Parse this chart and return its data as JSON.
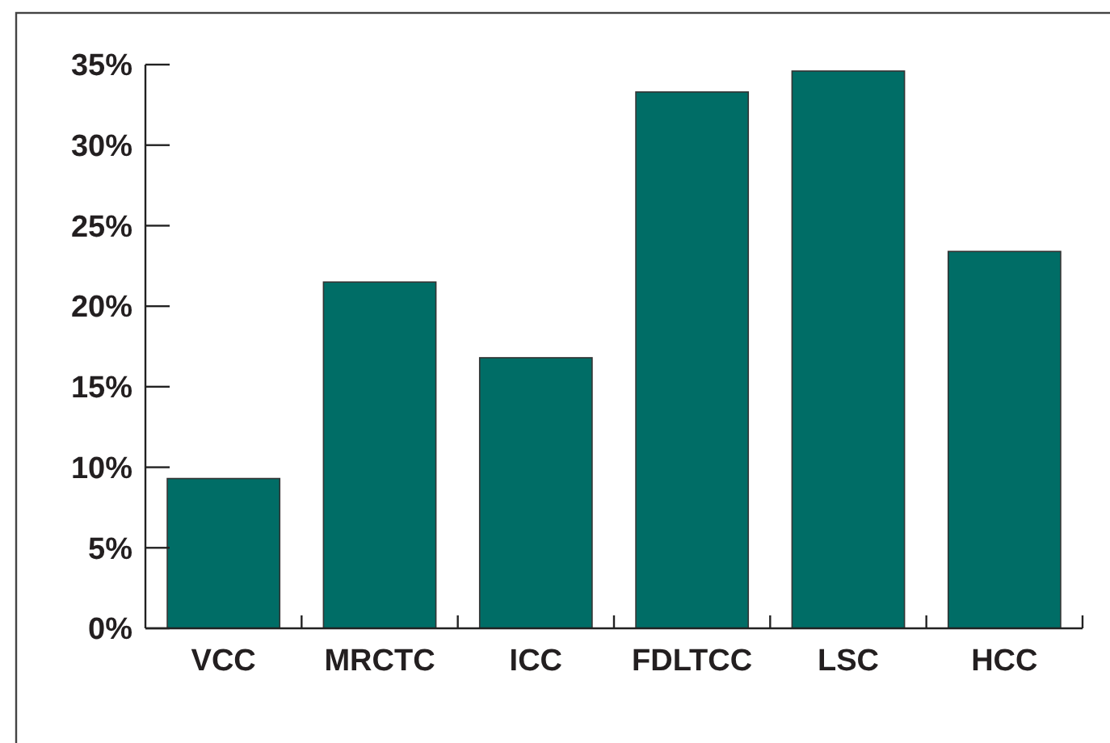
{
  "chart_data": {
    "type": "bar",
    "categories": [
      "VCC",
      "MRCTC",
      "ICC",
      "FDLTCC",
      "LSC",
      "HCC"
    ],
    "values": [
      9.3,
      21.5,
      16.8,
      33.3,
      34.6,
      23.4
    ],
    "color": "#006d66",
    "ylim": [
      0,
      35
    ],
    "yticks": [
      {
        "value": 0,
        "label": "0%"
      },
      {
        "value": 5,
        "label": "5%"
      },
      {
        "value": 10,
        "label": "10%"
      },
      {
        "value": 15,
        "label": "15%"
      },
      {
        "value": 20,
        "label": "20%"
      },
      {
        "value": 25,
        "label": "25%"
      },
      {
        "value": 30,
        "label": "30%"
      },
      {
        "value": 35,
        "label": "35%"
      }
    ],
    "grid": false
  }
}
